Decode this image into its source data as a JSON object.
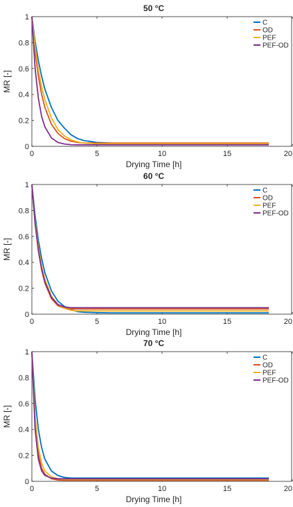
{
  "chart_data": [
    {
      "type": "line",
      "title": "50 °C",
      "xlabel": "Drying Time [h]",
      "ylabel": "MR [-]",
      "xlim": [
        0,
        20
      ],
      "ylim": [
        0,
        1
      ],
      "xticks": [
        0,
        5,
        10,
        15,
        20
      ],
      "yticks": [
        0,
        0.2,
        0.4,
        0.6,
        0.8,
        1
      ],
      "xtick_labels": [
        "0",
        "5",
        "10",
        "15",
        "20"
      ],
      "ytick_labels": [
        "0",
        "0.2",
        "0.4",
        "0.6",
        "0.8",
        "1"
      ],
      "legend_position": "top-right",
      "x": [
        0,
        0.25,
        0.5,
        0.75,
        1,
        1.5,
        2,
        2.5,
        3,
        3.5,
        4,
        5,
        6,
        8,
        10,
        12,
        15,
        18.2
      ],
      "series": [
        {
          "name": "C",
          "color": "#0072BD",
          "values": [
            1.0,
            0.81,
            0.66,
            0.54,
            0.44,
            0.3,
            0.2,
            0.14,
            0.09,
            0.06,
            0.045,
            0.03,
            0.025,
            0.02,
            0.02,
            0.02,
            0.02,
            0.02
          ]
        },
        {
          "name": "OD",
          "color": "#D95319",
          "values": [
            1.0,
            0.73,
            0.54,
            0.4,
            0.3,
            0.17,
            0.1,
            0.06,
            0.04,
            0.03,
            0.027,
            0.025,
            0.025,
            0.025,
            0.025,
            0.025,
            0.025,
            0.025
          ]
        },
        {
          "name": "PEF",
          "color": "#EDB120",
          "values": [
            1.0,
            0.77,
            0.59,
            0.46,
            0.36,
            0.22,
            0.13,
            0.08,
            0.05,
            0.035,
            0.025,
            0.02,
            0.02,
            0.02,
            0.02,
            0.02,
            0.02,
            0.02
          ]
        },
        {
          "name": "PEF-OD",
          "color": "#7E2F8E",
          "values": [
            1.0,
            0.6,
            0.37,
            0.23,
            0.15,
            0.065,
            0.03,
            0.018,
            0.013,
            0.012,
            0.012,
            0.012,
            0.012,
            0.012,
            0.012,
            0.012,
            0.012,
            0.012
          ]
        }
      ]
    },
    {
      "type": "line",
      "title": "60 °C",
      "xlabel": "Drying Time [h]",
      "ylabel": "MR [-]",
      "xlim": [
        0,
        20
      ],
      "ylim": [
        0,
        1
      ],
      "xticks": [
        0,
        5,
        10,
        15,
        20
      ],
      "yticks": [
        0,
        0.2,
        0.4,
        0.6,
        0.8,
        1
      ],
      "xtick_labels": [
        "0",
        "5",
        "10",
        "15",
        "20"
      ],
      "ytick_labels": [
        "0",
        "0.2",
        "0.4",
        "0.6",
        "0.8",
        "1"
      ],
      "legend_position": "top-right",
      "x": [
        0,
        0.25,
        0.5,
        0.75,
        1,
        1.5,
        2,
        2.5,
        3,
        3.5,
        4,
        5,
        6,
        8,
        10,
        12,
        15,
        18.2
      ],
      "series": [
        {
          "name": "C",
          "color": "#0072BD",
          "values": [
            1.0,
            0.76,
            0.57,
            0.43,
            0.32,
            0.18,
            0.1,
            0.06,
            0.035,
            0.02,
            0.015,
            0.012,
            0.01,
            0.01,
            0.01,
            0.01,
            0.01,
            0.01
          ]
        },
        {
          "name": "OD",
          "color": "#D95319",
          "values": [
            1.0,
            0.7,
            0.49,
            0.34,
            0.24,
            0.12,
            0.065,
            0.045,
            0.04,
            0.04,
            0.04,
            0.04,
            0.04,
            0.04,
            0.04,
            0.04,
            0.04,
            0.04
          ]
        },
        {
          "name": "PEF",
          "color": "#EDB120",
          "values": [
            1.0,
            0.72,
            0.52,
            0.37,
            0.27,
            0.14,
            0.075,
            0.045,
            0.03,
            0.025,
            0.025,
            0.025,
            0.025,
            0.025,
            0.025,
            0.025,
            0.025,
            0.025
          ]
        },
        {
          "name": "PEF-OD",
          "color": "#7E2F8E",
          "values": [
            1.0,
            0.7,
            0.49,
            0.35,
            0.25,
            0.13,
            0.075,
            0.055,
            0.05,
            0.05,
            0.05,
            0.05,
            0.05,
            0.05,
            0.05,
            0.05,
            0.05,
            0.05
          ]
        }
      ]
    },
    {
      "type": "line",
      "title": "70 °C",
      "xlabel": "Drying Time [h]",
      "ylabel": "MR [-]",
      "xlim": [
        0,
        20
      ],
      "ylim": [
        0,
        1
      ],
      "xticks": [
        0,
        5,
        10,
        15,
        20
      ],
      "yticks": [
        0,
        0.2,
        0.4,
        0.6,
        0.8,
        1
      ],
      "xtick_labels": [
        "0",
        "5",
        "10",
        "15",
        "20"
      ],
      "ytick_labels": [
        "0",
        "0.2",
        "0.4",
        "0.6",
        "0.8",
        "1"
      ],
      "legend_position": "top-right",
      "x": [
        0,
        0.25,
        0.5,
        0.75,
        1,
        1.5,
        2,
        2.5,
        3,
        3.5,
        4,
        5,
        6,
        8,
        10,
        12,
        15,
        18.2
      ],
      "series": [
        {
          "name": "C",
          "color": "#0072BD",
          "values": [
            1.0,
            0.63,
            0.4,
            0.26,
            0.17,
            0.08,
            0.045,
            0.03,
            0.025,
            0.025,
            0.025,
            0.025,
            0.025,
            0.025,
            0.025,
            0.025,
            0.025,
            0.025
          ]
        },
        {
          "name": "OD",
          "color": "#D95319",
          "values": [
            1.0,
            0.45,
            0.21,
            0.1,
            0.055,
            0.02,
            0.01,
            0.008,
            0.008,
            0.008,
            0.008,
            0.008,
            0.008,
            0.008,
            0.008,
            0.008,
            0.008,
            0.008
          ]
        },
        {
          "name": "PEF",
          "color": "#EDB120",
          "values": [
            1.0,
            0.5,
            0.26,
            0.14,
            0.08,
            0.035,
            0.02,
            0.015,
            0.015,
            0.015,
            0.015,
            0.015,
            0.015,
            0.015,
            0.015,
            0.015,
            0.015,
            0.015
          ]
        },
        {
          "name": "PEF-OD",
          "color": "#7E2F8E",
          "values": [
            1.0,
            0.4,
            0.17,
            0.08,
            0.045,
            0.025,
            0.02,
            0.02,
            0.02,
            0.02,
            0.02,
            0.02,
            0.02,
            0.02,
            0.02,
            0.02,
            0.02,
            0.02
          ]
        }
      ]
    }
  ]
}
